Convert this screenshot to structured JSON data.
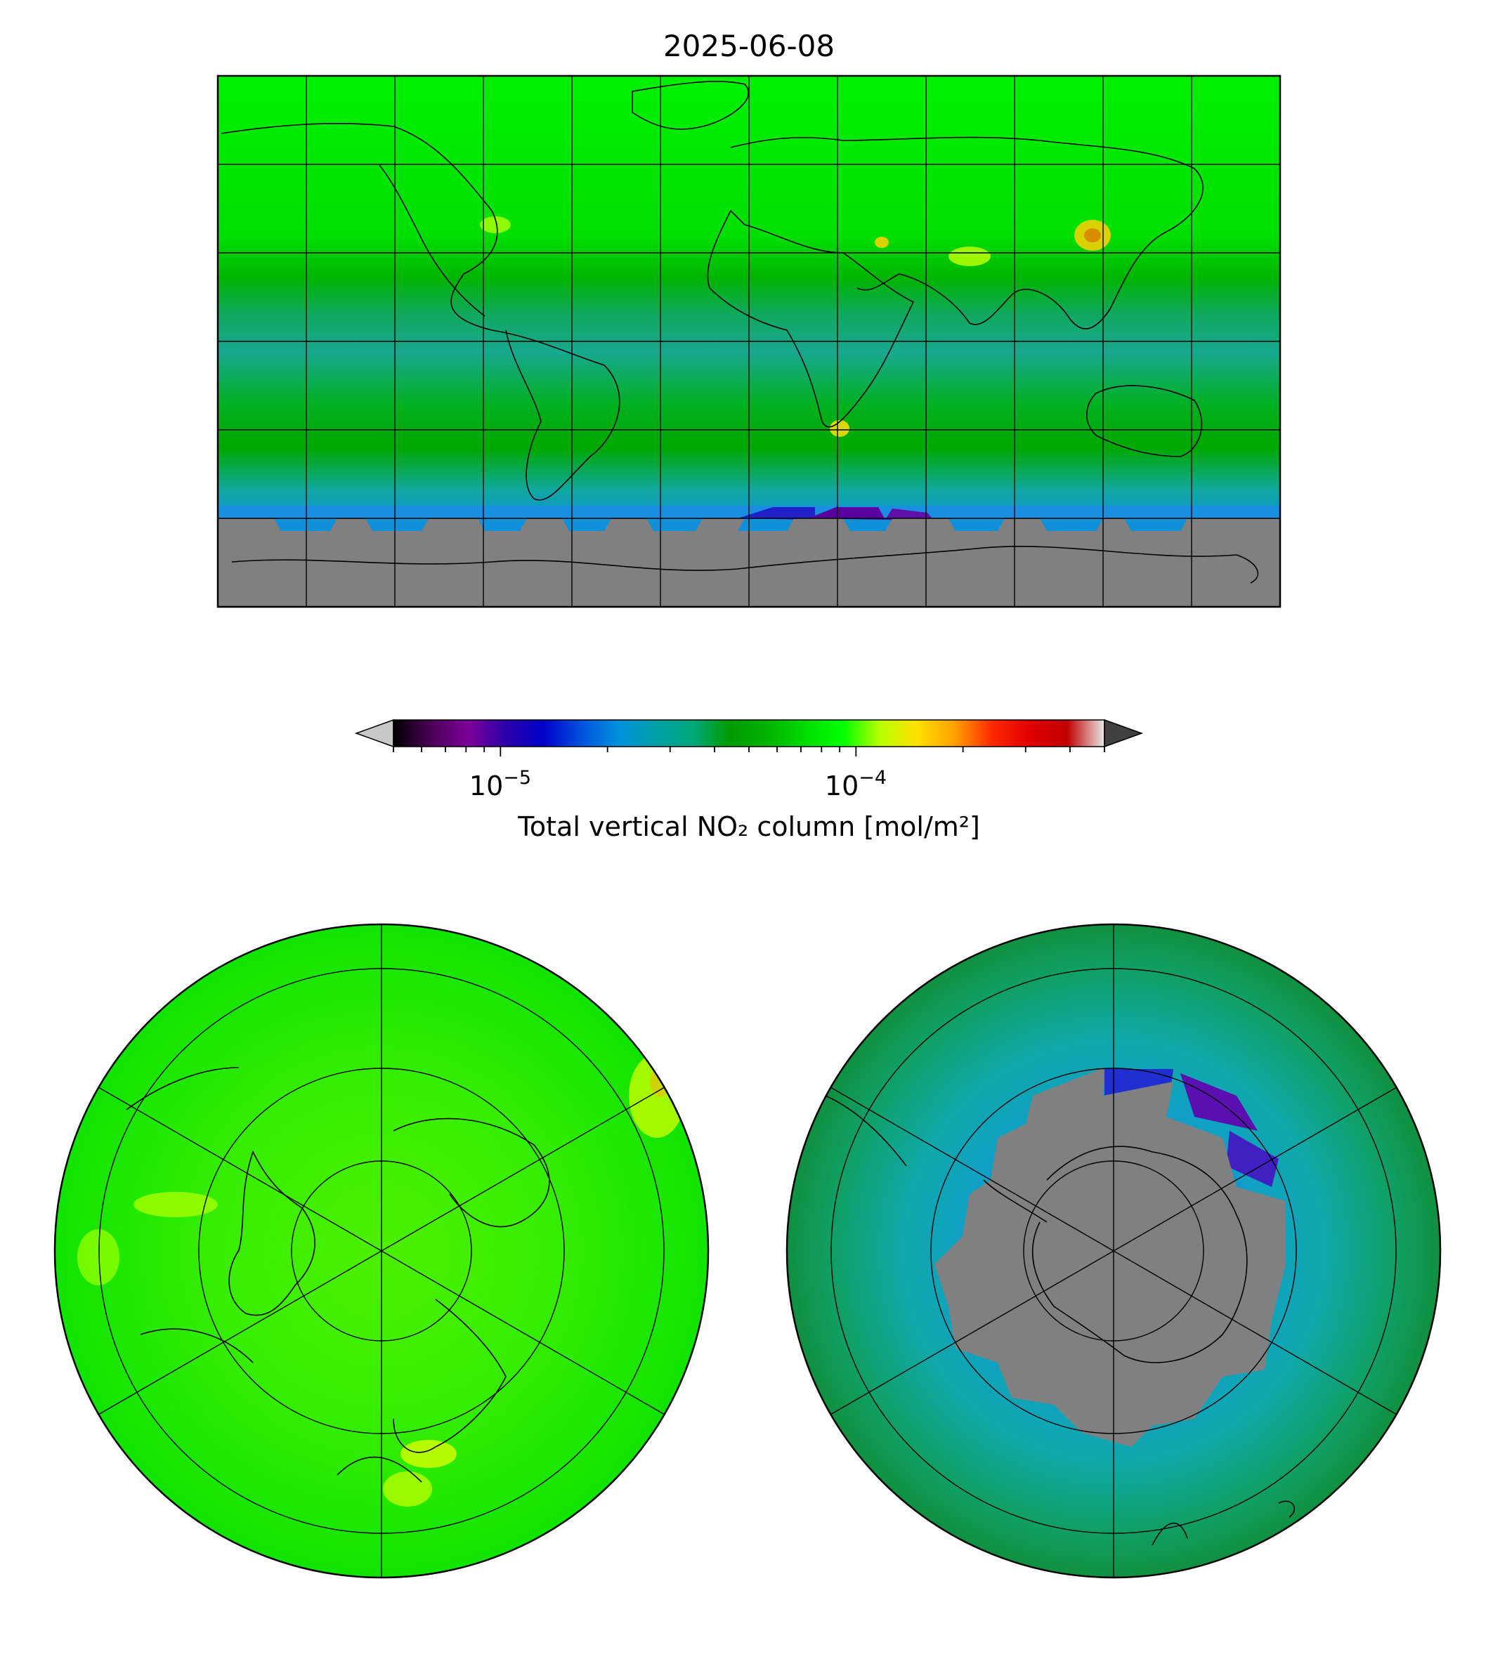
{
  "title": "2025-06-08",
  "colorbar": {
    "label": "Total vertical NO₂ column [mol/m²]",
    "scale": "log",
    "range": [
      5e-06,
      0.0005
    ],
    "major_ticks": [
      {
        "base": "10",
        "exp": "−5",
        "value": 1e-05
      },
      {
        "base": "10",
        "exp": "−4",
        "value": 0.0001
      }
    ],
    "extend": "both",
    "under_color": "#c8c8c8",
    "over_color": "#404040",
    "colors": [
      "#000000",
      "#4b0055",
      "#7c009a",
      "#2b00a8",
      "#0000c8",
      "#0050dd",
      "#0090dd",
      "#00a0a8",
      "#00a878",
      "#009a00",
      "#00b400",
      "#00dc00",
      "#00ff00",
      "#b8ff00",
      "#ffe000",
      "#ffa000",
      "#ff2800",
      "#e00000",
      "#c00000",
      "#e8e8e8"
    ]
  },
  "panels": {
    "global": {
      "projection": "plate-carree",
      "no_data_color": "#808080"
    },
    "north_polar": {
      "projection": "north-polar-stereographic"
    },
    "south_polar": {
      "projection": "south-polar-stereographic",
      "no_data_color": "#808080"
    }
  }
}
